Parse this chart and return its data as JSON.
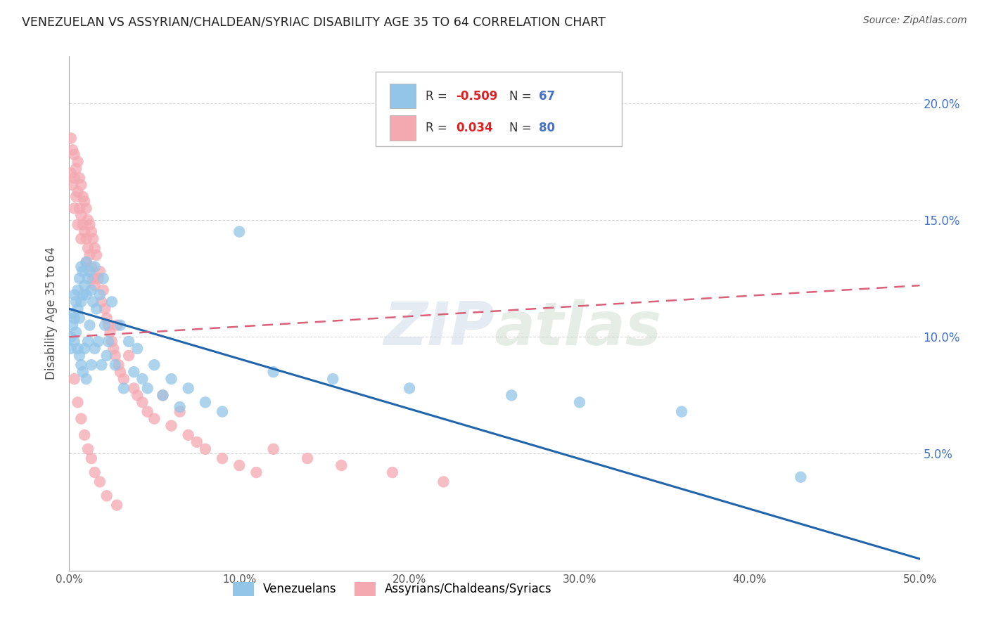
{
  "title": "VENEZUELAN VS ASSYRIAN/CHALDEAN/SYRIAC DISABILITY AGE 35 TO 64 CORRELATION CHART",
  "source": "Source: ZipAtlas.com",
  "ylabel": "Disability Age 35 to 64",
  "xlim": [
    0,
    0.5
  ],
  "ylim": [
    0,
    0.22
  ],
  "xticks": [
    0.0,
    0.1,
    0.2,
    0.3,
    0.4,
    0.5
  ],
  "yticks": [
    0.0,
    0.05,
    0.1,
    0.15,
    0.2
  ],
  "xticklabels": [
    "0.0%",
    "10.0%",
    "20.0%",
    "30.0%",
    "40.0%",
    "50.0%"
  ],
  "right_yticklabels": [
    "",
    "5.0%",
    "10.0%",
    "15.0%",
    "20.0%"
  ],
  "legend_R_blue": "-0.509",
  "legend_N_blue": "67",
  "legend_R_pink": "0.034",
  "legend_N_pink": "80",
  "blue_color": "#92C5E8",
  "pink_color": "#F4A8B0",
  "blue_line_color": "#2166AC",
  "pink_line_color": "#D9607A",
  "background_color": "#ffffff",
  "grid_color": "#cccccc",
  "watermark": "ZIPatlas",
  "legend_label_blue": "Venezuelans",
  "legend_label_pink": "Assyrians/Chaldeans/Syriacs",
  "blue_trend_x0": 0.0,
  "blue_trend_y0": 0.112,
  "blue_trend_x1": 0.5,
  "blue_trend_y1": 0.005,
  "pink_trend_x0": 0.0,
  "pink_trend_y0": 0.1,
  "pink_trend_x1": 0.5,
  "pink_trend_y1": 0.122,
  "venezuelan_x": [
    0.001,
    0.001,
    0.002,
    0.002,
    0.003,
    0.003,
    0.003,
    0.004,
    0.004,
    0.005,
    0.005,
    0.005,
    0.006,
    0.006,
    0.006,
    0.007,
    0.007,
    0.007,
    0.008,
    0.008,
    0.008,
    0.009,
    0.009,
    0.01,
    0.01,
    0.01,
    0.011,
    0.011,
    0.012,
    0.012,
    0.013,
    0.013,
    0.014,
    0.015,
    0.015,
    0.016,
    0.017,
    0.018,
    0.019,
    0.02,
    0.021,
    0.022,
    0.023,
    0.025,
    0.027,
    0.03,
    0.032,
    0.035,
    0.038,
    0.04,
    0.043,
    0.046,
    0.05,
    0.055,
    0.06,
    0.065,
    0.07,
    0.08,
    0.09,
    0.1,
    0.12,
    0.155,
    0.2,
    0.26,
    0.3,
    0.36,
    0.43
  ],
  "venezuelan_y": [
    0.1,
    0.095,
    0.11,
    0.105,
    0.118,
    0.108,
    0.098,
    0.115,
    0.102,
    0.12,
    0.112,
    0.095,
    0.125,
    0.108,
    0.092,
    0.13,
    0.115,
    0.088,
    0.128,
    0.118,
    0.085,
    0.122,
    0.095,
    0.132,
    0.118,
    0.082,
    0.125,
    0.098,
    0.128,
    0.105,
    0.12,
    0.088,
    0.115,
    0.13,
    0.095,
    0.112,
    0.098,
    0.118,
    0.088,
    0.125,
    0.105,
    0.092,
    0.098,
    0.115,
    0.088,
    0.105,
    0.078,
    0.098,
    0.085,
    0.095,
    0.082,
    0.078,
    0.088,
    0.075,
    0.082,
    0.07,
    0.078,
    0.072,
    0.068,
    0.145,
    0.085,
    0.082,
    0.078,
    0.075,
    0.072,
    0.068,
    0.04
  ],
  "assyrian_x": [
    0.001,
    0.001,
    0.002,
    0.002,
    0.003,
    0.003,
    0.003,
    0.004,
    0.004,
    0.005,
    0.005,
    0.005,
    0.006,
    0.006,
    0.007,
    0.007,
    0.007,
    0.008,
    0.008,
    0.009,
    0.009,
    0.01,
    0.01,
    0.01,
    0.011,
    0.011,
    0.012,
    0.012,
    0.013,
    0.013,
    0.014,
    0.014,
    0.015,
    0.015,
    0.016,
    0.017,
    0.018,
    0.019,
    0.02,
    0.021,
    0.022,
    0.023,
    0.024,
    0.025,
    0.026,
    0.027,
    0.028,
    0.029,
    0.03,
    0.032,
    0.035,
    0.038,
    0.04,
    0.043,
    0.046,
    0.05,
    0.055,
    0.06,
    0.065,
    0.07,
    0.075,
    0.08,
    0.09,
    0.1,
    0.11,
    0.12,
    0.14,
    0.16,
    0.19,
    0.22,
    0.003,
    0.005,
    0.007,
    0.009,
    0.011,
    0.013,
    0.015,
    0.018,
    0.022,
    0.028
  ],
  "assyrian_y": [
    0.185,
    0.17,
    0.18,
    0.165,
    0.178,
    0.168,
    0.155,
    0.172,
    0.16,
    0.175,
    0.162,
    0.148,
    0.168,
    0.155,
    0.165,
    0.152,
    0.142,
    0.16,
    0.148,
    0.158,
    0.145,
    0.155,
    0.142,
    0.132,
    0.15,
    0.138,
    0.148,
    0.135,
    0.145,
    0.13,
    0.142,
    0.125,
    0.138,
    0.122,
    0.135,
    0.125,
    0.128,
    0.115,
    0.12,
    0.112,
    0.108,
    0.105,
    0.102,
    0.098,
    0.095,
    0.092,
    0.105,
    0.088,
    0.085,
    0.082,
    0.092,
    0.078,
    0.075,
    0.072,
    0.068,
    0.065,
    0.075,
    0.062,
    0.068,
    0.058,
    0.055,
    0.052,
    0.048,
    0.045,
    0.042,
    0.052,
    0.048,
    0.045,
    0.042,
    0.038,
    0.082,
    0.072,
    0.065,
    0.058,
    0.052,
    0.048,
    0.042,
    0.038,
    0.032,
    0.028
  ]
}
